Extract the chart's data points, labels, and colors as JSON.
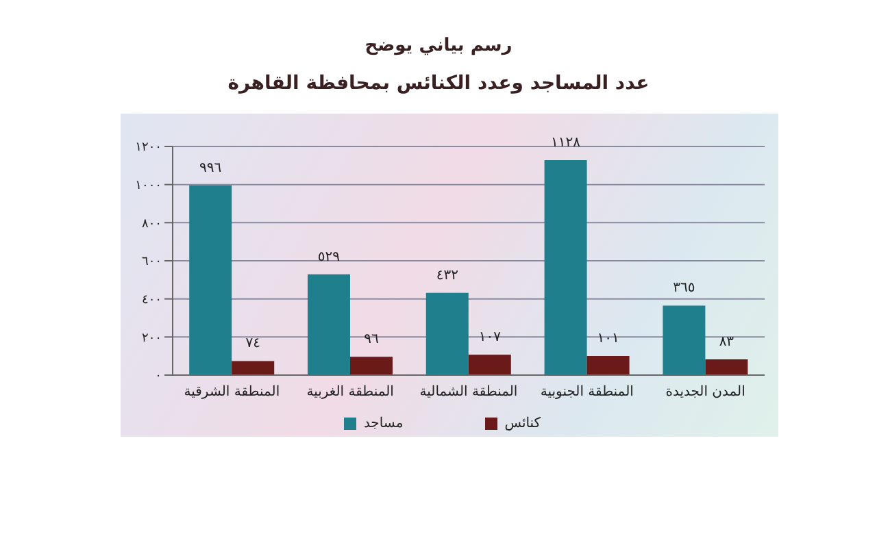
{
  "chart_data": {
    "type": "bar",
    "title": "رسم بياني يوضح",
    "subtitle": "عدد المساجد وعدد الكنائس بمحافظة القاهرة",
    "categories": [
      "المنطقة الشرقية",
      "المنطقة الغربية",
      "المنطقة الشمالية",
      "المنطقة الجنوبية",
      "المدن الجديدة"
    ],
    "series": [
      {
        "name": "مساجد",
        "color": "#1f7f8c",
        "values": [
          996,
          529,
          432,
          1128,
          365
        ],
        "value_labels": [
          "٩٩٦",
          "٥٢٩",
          "٤٣٢",
          "١١٢٨",
          "٣٦٥"
        ]
      },
      {
        "name": "كنائس",
        "color": "#6b1a1a",
        "values": [
          74,
          96,
          107,
          101,
          83
        ],
        "value_labels": [
          "٧٤",
          "٩٦",
          "١٠٧",
          "١٠١",
          "٨٣"
        ]
      }
    ],
    "ylim": [
      0,
      1200
    ],
    "yticks": [
      {
        "value": 0,
        "label": "٠"
      },
      {
        "value": 200,
        "label": "٢٠٠"
      },
      {
        "value": 400,
        "label": "٤٠٠"
      },
      {
        "value": 600,
        "label": "٦٠٠"
      },
      {
        "value": 800,
        "label": "٨٠٠"
      },
      {
        "value": 1000,
        "label": "١٠٠٠"
      },
      {
        "value": 1200,
        "label": "١٢٠٠"
      }
    ],
    "grid": "y",
    "legend": "bottom"
  }
}
